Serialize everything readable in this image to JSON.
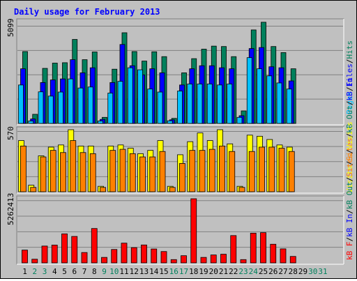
{
  "title": "Daily usage for February 2013",
  "colors": {
    "background": "#c0c0c0",
    "plot": "#c0c0c0",
    "hits": "#00805c",
    "files": "#0000ff",
    "pages": "#00c0ff",
    "visits": "#ffff00",
    "sites": "#ff8000",
    "kbin": "#ff0000",
    "day_weekday": "#000000",
    "day_weekend": "#00805c"
  },
  "panels": {
    "top": {
      "max_label": "5099",
      "legend": [
        "Pages",
        "/",
        "Files",
        "/",
        "Hits"
      ]
    },
    "middle": {
      "max_label": "570",
      "legend": [
        "Visits",
        "/",
        "Sites",
        "/",
        "kB Out",
        "/",
        "kB In"
      ]
    },
    "bottom": {
      "max_label": "5262413",
      "legend": [
        "kB F",
        "/",
        "kB In",
        "/",
        "kB Out",
        "/",
        "Sites",
        "/",
        "Visits"
      ]
    }
  },
  "chart_data": [
    {
      "type": "bar",
      "title": "Daily usage for February 2013",
      "categories": [
        "1",
        "2",
        "3",
        "4",
        "5",
        "6",
        "7",
        "8",
        "9",
        "10",
        "11",
        "12",
        "13",
        "14",
        "15",
        "16",
        "17",
        "18",
        "19",
        "20",
        "21",
        "22",
        "23",
        "24",
        "25",
        "26",
        "27",
        "28",
        "29",
        "30",
        "31"
      ],
      "weekend_days": [
        "2",
        "3",
        "9",
        "10",
        "16",
        "17",
        "23",
        "24",
        "30",
        "31"
      ],
      "ylim": [
        0,
        5099
      ],
      "series": [
        {
          "name": "Hits",
          "values": [
            3550,
            450,
            2720,
            2980,
            3000,
            4150,
            3150,
            3530,
            300,
            2680,
            4480,
            3550,
            3080,
            3540,
            3300,
            250,
            2500,
            3200,
            3670,
            3820,
            3800,
            3300,
            620,
            4620,
            5000,
            3800,
            3500,
            2700,
            0,
            0,
            0
          ]
        },
        {
          "name": "Files",
          "values": [
            2700,
            220,
            2020,
            2150,
            2200,
            3150,
            2500,
            2750,
            200,
            2020,
            3900,
            2850,
            2400,
            2700,
            2500,
            180,
            1900,
            2700,
            2850,
            2850,
            2750,
            2700,
            380,
            3700,
            3750,
            2800,
            2750,
            2100,
            0,
            0,
            0
          ]
        },
        {
          "name": "Pages",
          "values": [
            1900,
            120,
            1560,
            1350,
            1550,
            2200,
            1750,
            1800,
            120,
            1500,
            2080,
            2750,
            2650,
            1700,
            1550,
            130,
            1600,
            1950,
            1950,
            1950,
            1900,
            1950,
            300,
            3250,
            2700,
            2350,
            2000,
            1700,
            0,
            0,
            0
          ]
        }
      ]
    },
    {
      "type": "bar",
      "categories": [
        "1",
        "2",
        "3",
        "4",
        "5",
        "6",
        "7",
        "8",
        "9",
        "10",
        "11",
        "12",
        "13",
        "14",
        "15",
        "16",
        "17",
        "18",
        "19",
        "20",
        "21",
        "22",
        "23",
        "24",
        "25",
        "26",
        "27",
        "28",
        "29",
        "30",
        "31"
      ],
      "ylim": [
        0,
        570
      ],
      "series": [
        {
          "name": "Visits",
          "values": [
            470,
            60,
            330,
            410,
            430,
            570,
            420,
            420,
            50,
            420,
            430,
            400,
            350,
            380,
            470,
            50,
            340,
            460,
            540,
            470,
            570,
            440,
            50,
            520,
            510,
            480,
            430,
            410,
            0,
            0,
            0
          ]
        },
        {
          "name": "Sites",
          "values": [
            420,
            40,
            320,
            380,
            360,
            470,
            360,
            350,
            40,
            380,
            390,
            350,
            320,
            320,
            370,
            40,
            260,
            380,
            380,
            390,
            420,
            370,
            40,
            370,
            410,
            410,
            400,
            370,
            0,
            0,
            0
          ]
        }
      ]
    },
    {
      "type": "bar",
      "categories": [
        "1",
        "2",
        "3",
        "4",
        "5",
        "6",
        "7",
        "8",
        "9",
        "10",
        "11",
        "12",
        "13",
        "14",
        "15",
        "16",
        "17",
        "18",
        "19",
        "20",
        "21",
        "22",
        "23",
        "24",
        "25",
        "26",
        "27",
        "28",
        "29",
        "30",
        "31"
      ],
      "ylim": [
        0,
        5262413
      ],
      "series": [
        {
          "name": "kB F",
          "values": [
            1050000,
            300000,
            1380000,
            1460000,
            2380000,
            2170000,
            850000,
            2820000,
            450000,
            1100000,
            1620000,
            1250000,
            1470000,
            1140000,
            930000,
            270000,
            590000,
            5262413,
            450000,
            650000,
            710000,
            2240000,
            270000,
            2440000,
            2480000,
            1530000,
            1150000,
            530000,
            0,
            0,
            0
          ]
        }
      ]
    }
  ]
}
